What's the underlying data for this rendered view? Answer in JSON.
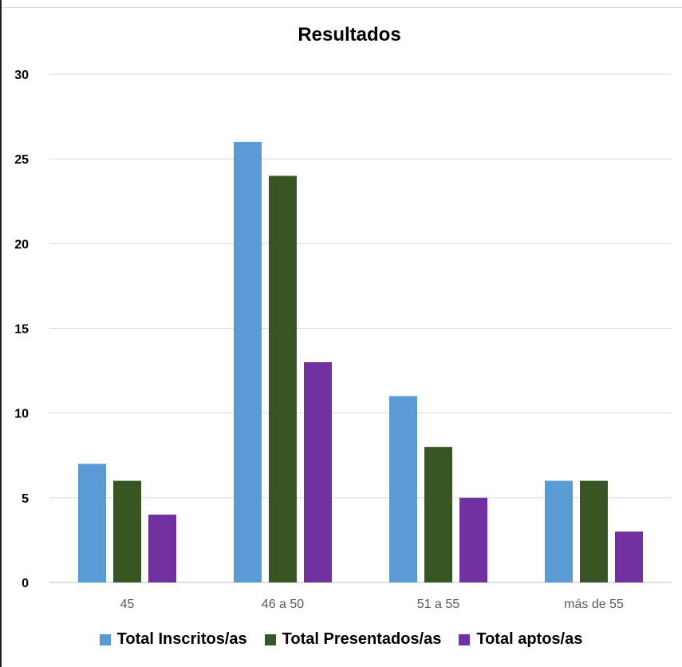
{
  "chart_data": {
    "type": "bar",
    "title": "Resultados",
    "xlabel": "",
    "ylabel": "",
    "categories": [
      "45",
      "46 a 50",
      "51 a 55",
      "más de 55"
    ],
    "series": [
      {
        "name": "Total Inscritos/as",
        "values": [
          7,
          26,
          11,
          6
        ],
        "color": "#5b9bd5"
      },
      {
        "name": "Total Presentados/as",
        "values": [
          6,
          24,
          8,
          6
        ],
        "color": "#375623"
      },
      {
        "name": "Total aptos/as",
        "values": [
          4,
          13,
          5,
          3
        ],
        "color": "#7030a0"
      }
    ],
    "ylim": [
      0,
      30
    ],
    "yticks": [
      0,
      5,
      10,
      15,
      20,
      25,
      30
    ],
    "grid": true,
    "legend_position": "bottom"
  }
}
